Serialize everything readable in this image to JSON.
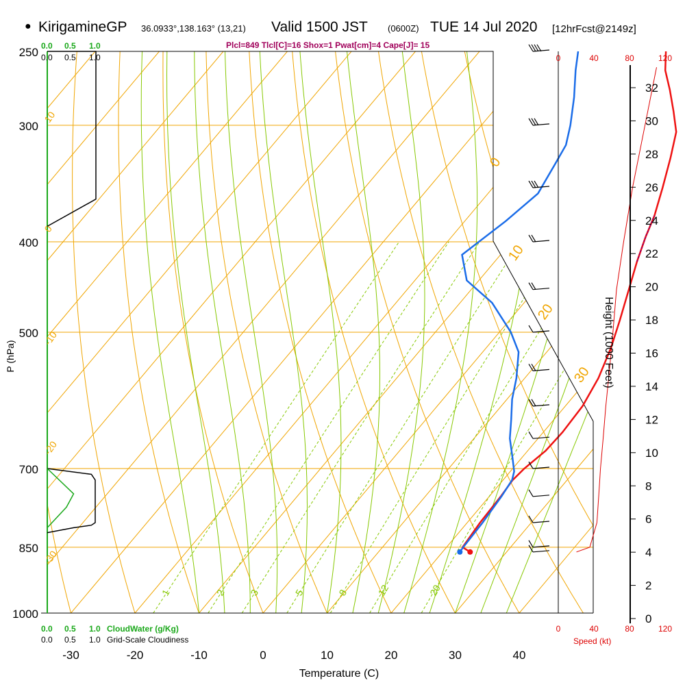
{
  "header": {
    "dot": "●",
    "station": "KirigamineGP",
    "coords": "36.0933°,138.163° (13,21)",
    "valid": "Valid 1500 JST",
    "zulu": "(0600Z)",
    "date": "TUE 14 Jul 2020",
    "forecast": "[12hrFcst@2149z]",
    "params": "Plcl=849 Tlcl[C]=16 Shox=1 Pwat[cm]=4 Cape[J]= 15"
  },
  "colors": {
    "isotherm": "#f0a500",
    "dry_adiabat": "#f0a500",
    "moist_adiabat": "#86c800",
    "mixing_ratio": "#86c800",
    "temperature": "#ee1111",
    "dewpoint": "#1a6ce8",
    "parcel": "#a0005a",
    "cloud_water": "#1aa81a",
    "wind_speed": "#dd0000"
  },
  "chart_data": {
    "type": "line",
    "subtype": "skew-T log-P sounding",
    "xlabel": "Temperature (C)",
    "ylabel": "P (hPa)",
    "right_axis_label": "Height (1000 Feet)",
    "x_ticks": [
      -30,
      -20,
      -10,
      0,
      10,
      20,
      30,
      40
    ],
    "p_ticks": [
      250,
      300,
      400,
      500,
      700,
      850,
      1000
    ],
    "height_ticks": [
      0,
      2,
      4,
      6,
      8,
      10,
      12,
      14,
      16,
      18,
      20,
      22,
      24,
      26,
      28,
      30,
      32
    ],
    "xlim": [
      -35,
      45
    ],
    "plim": [
      1000,
      250
    ],
    "dry_adiabat_labels": [
      "10",
      "0",
      "-10",
      "-20",
      "-30",
      "0",
      "10",
      "20",
      "30"
    ],
    "mixing_ratio_labels": [
      "1",
      "2",
      "3",
      "5",
      "8",
      "12",
      "20"
    ],
    "mixing_ratios_gkg": [
      1,
      2,
      3,
      5,
      8,
      12,
      20
    ],
    "cloud_axis": {
      "top_labels": [
        "0.0",
        "0.5",
        "1.0"
      ],
      "bottom_labels": [
        "0.0",
        "0.5",
        "1.0"
      ],
      "cloud_water_label": "CloudWater (g/Kg)",
      "cloudiness_label": "Grid-Scale Cloudiness"
    },
    "wind_axis": {
      "labels": [
        "0",
        "40",
        "80",
        "120"
      ],
      "title": "Speed (kt)"
    },
    "series": [
      {
        "name": "Temperature",
        "points": [
          [
            24.3,
            860
          ],
          [
            22.5,
            850
          ],
          [
            22.0,
            800
          ],
          [
            21.8,
            750
          ],
          [
            21.5,
            720
          ],
          [
            21.8,
            700
          ],
          [
            22.8,
            670
          ],
          [
            23.0,
            640
          ],
          [
            22.7,
            600
          ],
          [
            21.5,
            560
          ],
          [
            19.5,
            520
          ],
          [
            17.2,
            485
          ],
          [
            14.6,
            450
          ],
          [
            12.2,
            420
          ],
          [
            10.3,
            395
          ],
          [
            8.9,
            375
          ],
          [
            6.5,
            350
          ],
          [
            3.8,
            325
          ],
          [
            1.3,
            305
          ],
          [
            -1.8,
            290
          ],
          [
            -5.2,
            275
          ],
          [
            -8.5,
            262
          ],
          [
            -10.9,
            250
          ]
        ]
      },
      {
        "name": "Dewpoint",
        "points": [
          [
            22.7,
            860
          ],
          [
            22.6,
            850
          ],
          [
            22.4,
            800
          ],
          [
            21.9,
            750
          ],
          [
            21.4,
            720
          ],
          [
            20.6,
            705
          ],
          [
            18.4,
            680
          ],
          [
            15.6,
            650
          ],
          [
            13.3,
            620
          ],
          [
            10.8,
            590
          ],
          [
            8.7,
            560
          ],
          [
            5.6,
            525
          ],
          [
            1.8,
            500
          ],
          [
            -5.0,
            465
          ],
          [
            -11.9,
            440
          ],
          [
            -16.0,
            413
          ],
          [
            -13.6,
            380
          ],
          [
            -12.2,
            355
          ],
          [
            -13.4,
            330
          ],
          [
            -14.2,
            315
          ],
          [
            -16.1,
            300
          ],
          [
            -19.2,
            280
          ],
          [
            -22.5,
            262
          ],
          [
            -24.6,
            250
          ]
        ]
      },
      {
        "name": "Parcel",
        "points": [
          [
            12.2,
            420
          ],
          [
            10.3,
            395
          ],
          [
            8.9,
            375
          ]
        ]
      }
    ],
    "cloudiness": [
      [
        0.0,
        700
      ],
      [
        0.92,
        710
      ],
      [
        1.0,
        720
      ],
      [
        1.0,
        800
      ],
      [
        0.92,
        805
      ],
      [
        0.55,
        810
      ],
      [
        0.0,
        820
      ]
    ],
    "cloud_water": [
      [
        0.0,
        700
      ],
      [
        0.55,
        745
      ],
      [
        0.4,
        770
      ],
      [
        0.0,
        810
      ]
    ],
    "wind_speed_kt": [
      [
        5,
        860
      ],
      [
        20,
        850
      ],
      [
        28,
        800
      ],
      [
        30,
        750
      ],
      [
        32,
        700
      ],
      [
        35,
        650
      ],
      [
        38,
        600
      ],
      [
        42,
        550
      ],
      [
        46,
        500
      ],
      [
        50,
        450
      ],
      [
        58,
        400
      ],
      [
        68,
        350
      ],
      [
        82,
        300
      ],
      [
        95,
        260
      ]
    ],
    "wind_barbs_kt": [
      [
        5,
        860
      ],
      [
        8,
        850
      ],
      [
        10,
        800
      ],
      [
        10,
        750
      ],
      [
        12,
        700
      ],
      [
        14,
        650
      ],
      [
        15,
        600
      ],
      [
        15,
        550
      ],
      [
        12,
        500
      ],
      [
        15,
        450
      ],
      [
        20,
        400
      ],
      [
        25,
        350
      ],
      [
        30,
        300
      ],
      [
        35,
        250
      ]
    ]
  }
}
